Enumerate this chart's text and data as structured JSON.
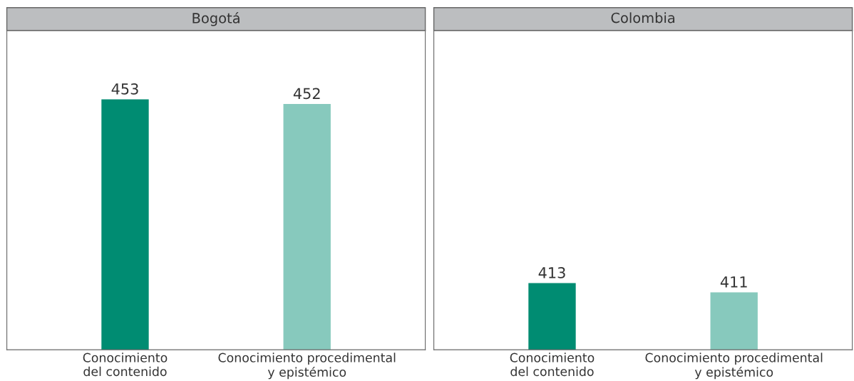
{
  "chart_data": [
    {
      "type": "bar",
      "title": "Bogotá",
      "categories": [
        "Conocimiento\ndel contenido",
        "Conocimiento procedimental\ny epistémico"
      ],
      "values": [
        453,
        452
      ],
      "colors": [
        "#008c72",
        "#87c9bd"
      ],
      "data_labels": true,
      "ylim": [
        398.5,
        468
      ],
      "tick_labels": "x"
    },
    {
      "type": "bar",
      "title": "Colombia",
      "categories": [
        "Conocimiento\ndel contenido",
        "Conocimiento procedimental\ny epistémico"
      ],
      "values": [
        413,
        411
      ],
      "colors": [
        "#008c72",
        "#87c9bd"
      ],
      "data_labels": true,
      "ylim": [
        398.5,
        468
      ],
      "tick_labels": "x"
    }
  ]
}
